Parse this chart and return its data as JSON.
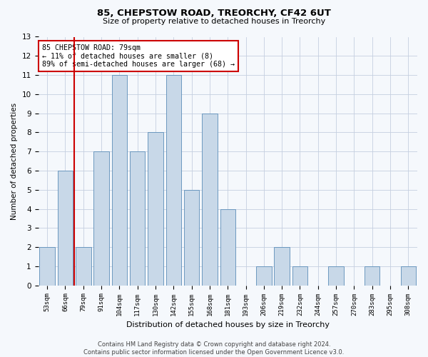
{
  "title1": "85, CHEPSTOW ROAD, TREORCHY, CF42 6UT",
  "title2": "Size of property relative to detached houses in Treorchy",
  "xlabel": "Distribution of detached houses by size in Treorchy",
  "ylabel": "Number of detached properties",
  "categories": [
    "53sqm",
    "66sqm",
    "79sqm",
    "91sqm",
    "104sqm",
    "117sqm",
    "130sqm",
    "142sqm",
    "155sqm",
    "168sqm",
    "181sqm",
    "193sqm",
    "206sqm",
    "219sqm",
    "232sqm",
    "244sqm",
    "257sqm",
    "270sqm",
    "283sqm",
    "295sqm",
    "308sqm"
  ],
  "values": [
    2,
    6,
    2,
    7,
    11,
    7,
    8,
    11,
    5,
    9,
    4,
    0,
    1,
    2,
    1,
    0,
    1,
    0,
    1,
    0,
    1
  ],
  "bar_color": "#c8d8e8",
  "bar_edge_color": "#5b8db8",
  "highlight_index": 2,
  "highlight_color": "#cc0000",
  "annotation_text": "85 CHEPSTOW ROAD: 79sqm\n← 11% of detached houses are smaller (8)\n89% of semi-detached houses are larger (68) →",
  "annotation_box_color": "#ffffff",
  "annotation_box_edge": "#cc0000",
  "footer": "Contains HM Land Registry data © Crown copyright and database right 2024.\nContains public sector information licensed under the Open Government Licence v3.0.",
  "ylim": [
    0,
    13
  ],
  "background_color": "#f5f8fc",
  "grid_color": "#c5cfe0"
}
